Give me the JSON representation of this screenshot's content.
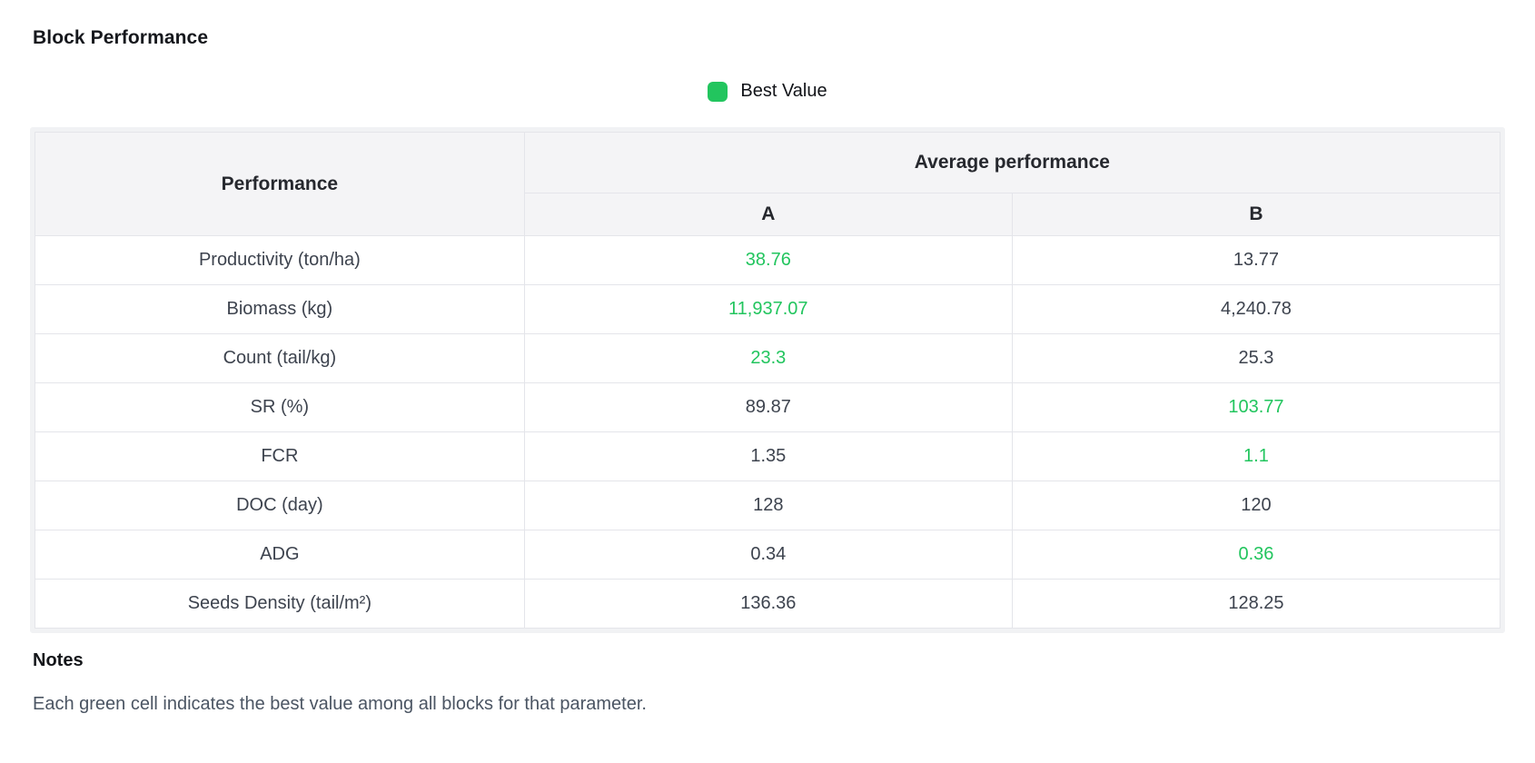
{
  "page": {
    "title": "Block Performance"
  },
  "legend": {
    "label": "Best Value",
    "color": "#22c55e"
  },
  "colors": {
    "best_value_green": "#22c55e",
    "header_bg": "#f4f4f6",
    "border": "#e4e5ea",
    "text_dark": "#3d434e"
  },
  "table": {
    "corner_header": "Performance",
    "group_header": "Average performance",
    "columns": [
      "A",
      "B"
    ],
    "rows": [
      {
        "label": "Productivity (ton/ha)",
        "a": "38.76",
        "b": "13.77",
        "best": "a"
      },
      {
        "label": "Biomass (kg)",
        "a": "11,937.07",
        "b": "4,240.78",
        "best": "a"
      },
      {
        "label": "Count (tail/kg)",
        "a": "23.3",
        "b": "25.3",
        "best": "a"
      },
      {
        "label": "SR (%)",
        "a": "89.87",
        "b": "103.77",
        "best": "b"
      },
      {
        "label": "FCR",
        "a": "1.35",
        "b": "1.1",
        "best": "b"
      },
      {
        "label": "DOC (day)",
        "a": "128",
        "b": "120",
        "best": ""
      },
      {
        "label": "ADG",
        "a": "0.34",
        "b": "0.36",
        "best": "b"
      },
      {
        "label": "Seeds Density (tail/m²)",
        "a": "136.36",
        "b": "128.25",
        "best": ""
      }
    ]
  },
  "notes": {
    "heading": "Notes",
    "text": "Each green cell indicates the best value among all blocks for that parameter."
  }
}
